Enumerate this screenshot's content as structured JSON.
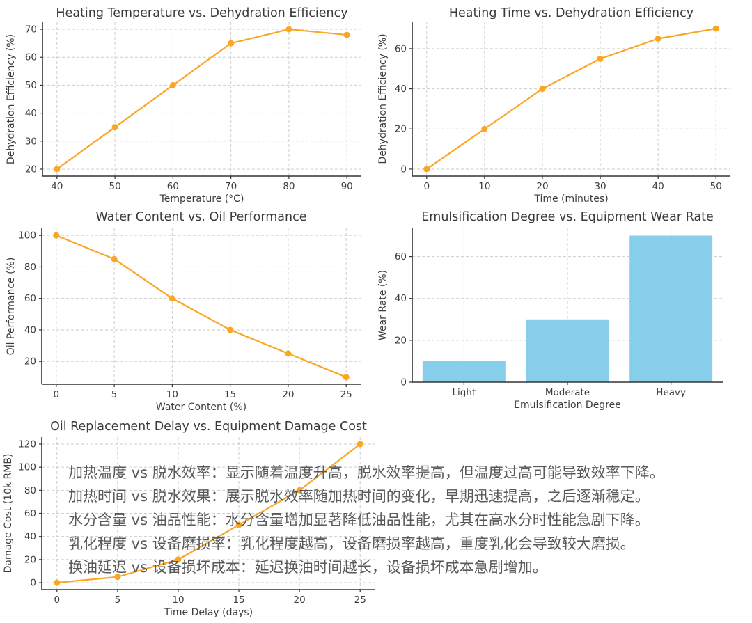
{
  "figure": {
    "background": "#ffffff"
  },
  "colors": {
    "line": "#FAA623",
    "marker": "#FAA623",
    "bar": "#87CEEB",
    "title_text": "#3a3a3a",
    "tick_text": "#3c3c3c",
    "grid": "#cdcdcd",
    "spine": "#333333",
    "annotation_text": "#595959"
  },
  "chart_data": [
    {
      "id": "heating-temperature-vs-dehydration-efficiency",
      "type": "line",
      "title": "Heating Temperature vs. Dehydration Efficiency",
      "xlabel": "Temperature (°C)",
      "ylabel": "Dehydration Efficiency (%)",
      "x": [
        40,
        50,
        60,
        70,
        80,
        90
      ],
      "y": [
        20,
        35,
        50,
        65,
        70,
        68
      ],
      "xticks": [
        40,
        50,
        60,
        70,
        80,
        90
      ],
      "yticks": [
        20,
        30,
        40,
        50,
        60,
        70
      ],
      "xlim": [
        37.5,
        92.5
      ],
      "ylim": [
        17.5,
        72.5
      ],
      "grid": true,
      "legend": "none"
    },
    {
      "id": "heating-time-vs-dehydration-efficiency",
      "type": "line",
      "title": "Heating Time vs. Dehydration Efficiency",
      "xlabel": "Time (minutes)",
      "ylabel": "Dehydration Efficiency (%)",
      "x": [
        0,
        10,
        20,
        30,
        40,
        50
      ],
      "y": [
        0,
        20,
        40,
        55,
        65,
        70
      ],
      "xticks": [
        0,
        10,
        20,
        30,
        40,
        50
      ],
      "yticks": [
        0,
        20,
        40,
        60
      ],
      "xlim": [
        -2.5,
        52.5
      ],
      "ylim": [
        -3.5,
        73.5
      ],
      "grid": true,
      "legend": "none"
    },
    {
      "id": "water-content-vs-oil-performance",
      "type": "line",
      "title": "Water Content vs. Oil Performance",
      "xlabel": "Water Content (%)",
      "ylabel": "Oil Performance (%)",
      "x": [
        0,
        5,
        10,
        15,
        20,
        25
      ],
      "y": [
        100,
        85,
        60,
        40,
        25,
        10
      ],
      "xticks": [
        0,
        5,
        10,
        15,
        20,
        25
      ],
      "yticks": [
        20,
        40,
        60,
        80,
        100
      ],
      "xlim": [
        -1.25,
        26.25
      ],
      "ylim": [
        5.5,
        104.5
      ],
      "grid": true,
      "legend": "none"
    },
    {
      "id": "emulsification-degree-vs-equipment-wear-rate",
      "type": "bar",
      "title": "Emulsification Degree vs. Equipment Wear Rate",
      "xlabel": "Emulsification Degree",
      "ylabel": "Wear Rate (%)",
      "categories": [
        "Light",
        "Moderate",
        "Heavy"
      ],
      "values": [
        10,
        30,
        70
      ],
      "yticks": [
        0,
        20,
        40,
        60
      ],
      "ylim": [
        0,
        73.5
      ],
      "grid": true,
      "legend": "none"
    },
    {
      "id": "oil-replacement-delay-vs-equipment-damage-cost",
      "type": "line",
      "title": "Oil Replacement Delay vs. Equipment Damage Cost",
      "xlabel": "Time Delay (days)",
      "ylabel": "Damage Cost (10k RMB)",
      "x": [
        0,
        5,
        10,
        15,
        20,
        25
      ],
      "y": [
        0,
        5,
        20,
        50,
        80,
        120
      ],
      "xticks": [
        0,
        5,
        10,
        15,
        20,
        25
      ],
      "yticks": [
        0,
        20,
        40,
        60,
        80,
        100,
        120
      ],
      "xlim": [
        -1.25,
        26.25
      ],
      "ylim": [
        -6,
        126
      ],
      "grid": true,
      "legend": "none"
    }
  ],
  "annotation": {
    "lines": [
      "加热温度 vs 脱水效率：显示随着温度升高，脱水效率提高，但温度过高可能导致效率下降。",
      "加热时间 vs 脱水效果：展示脱水效率随加热时间的变化，早期迅速提高，之后逐渐稳定。",
      "水分含量 vs 油品性能：水分含量增加显著降低油品性能，尤其在高水分时性能急剧下降。",
      "乳化程度 vs 设备磨损率：乳化程度越高，设备磨损率越高，重度乳化会导致较大磨损。",
      "换油延迟 vs 设备损坏成本：延迟换油时间越长，设备损坏成本急剧增加。"
    ]
  }
}
